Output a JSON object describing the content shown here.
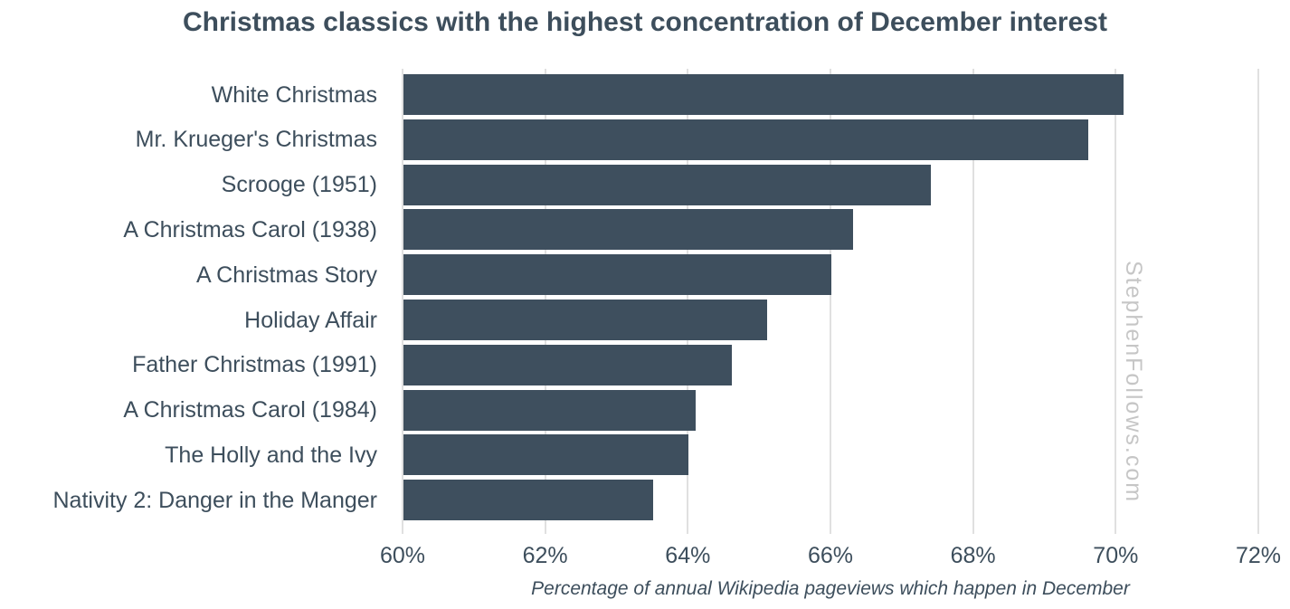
{
  "chart_data": {
    "type": "bar",
    "orientation": "horizontal",
    "title": "Christmas classics with the highest concentration of December interest",
    "categories": [
      "White Christmas",
      "Mr. Krueger's Christmas",
      "Scrooge (1951)",
      "A Christmas Carol (1938)",
      "A Christmas Story",
      "Holiday Affair",
      "Father Christmas (1991)",
      "A Christmas Carol (1984)",
      "The Holly and the Ivy",
      "Nativity 2: Danger in the Manger"
    ],
    "values": [
      70.1,
      69.6,
      67.4,
      66.3,
      66.0,
      65.1,
      64.6,
      64.1,
      64.0,
      63.5
    ],
    "xlabel": "Percentage of annual Wikipedia pageviews which happen in December",
    "ylabel": "",
    "xlim": [
      60,
      72
    ],
    "xticks": [
      "60%",
      "62%",
      "64%",
      "66%",
      "68%",
      "70%",
      "72%"
    ],
    "xtick_values": [
      60,
      62,
      64,
      66,
      68,
      70,
      72
    ],
    "grid": "vertical",
    "legend_position": "none",
    "colors": {
      "bar": "#3e4f5e",
      "gridline": "#e0e0e0",
      "text": "#3d4e5c",
      "watermark": "#c6c6c6",
      "background": "#ffffff"
    }
  },
  "watermark": {
    "text": "StephenFollows.com"
  }
}
